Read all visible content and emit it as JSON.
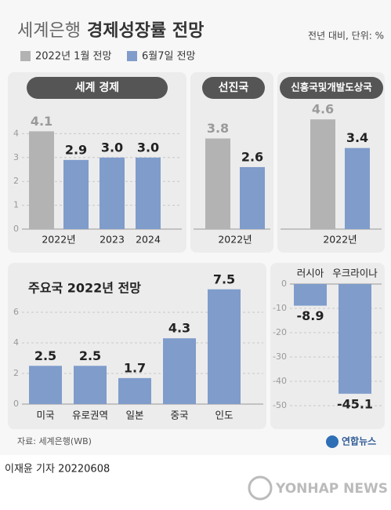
{
  "header": {
    "title_light": "세계은행",
    "title_bold": "경제성장률 전망",
    "unit": "전년 대비, 단위: %"
  },
  "chart_data": [
    {
      "type": "bar",
      "title": "세계 경제",
      "categories": [
        "2022년",
        "2023",
        "2024"
      ],
      "series": [
        {
          "name": "2022년 1월 전망",
          "color": "#b3b3b3",
          "values": [
            4.1,
            null,
            null
          ]
        },
        {
          "name": "6월7일 전망",
          "color": "#7f9ccb",
          "values": [
            2.9,
            3.0,
            3.0
          ],
          "value_labels": [
            "2.9",
            "3.0",
            "3.0"
          ]
        }
      ],
      "ylim": [
        0,
        5
      ],
      "yticks": [
        0,
        1,
        2,
        3,
        4
      ],
      "grid": true
    },
    {
      "type": "bar",
      "title": "선진국",
      "categories": [
        "2022년"
      ],
      "series": [
        {
          "color": "#b3b3b3",
          "values": [
            3.8
          ]
        },
        {
          "color": "#7f9ccb",
          "values": [
            2.6
          ]
        }
      ],
      "ylim": [
        0,
        5
      ]
    },
    {
      "type": "bar",
      "title": "신흥국및개발도상국",
      "categories": [
        "2022년"
      ],
      "series": [
        {
          "color": "#b3b3b3",
          "values": [
            4.6
          ]
        },
        {
          "color": "#7f9ccb",
          "values": [
            3.4
          ]
        }
      ],
      "ylim": [
        0,
        5
      ]
    },
    {
      "type": "bar",
      "title": "주요국 2022년 전망",
      "categories": [
        "미국",
        "유로권역",
        "일본",
        "중국",
        "인도"
      ],
      "series": [
        {
          "color": "#7f9ccb",
          "values": [
            2.5,
            2.5,
            1.7,
            4.3,
            7.5
          ]
        }
      ],
      "ylim": [
        0,
        8
      ],
      "yticks": [
        0,
        2,
        4,
        6
      ],
      "grid": true
    },
    {
      "type": "bar",
      "categories": [
        "러시아",
        "우크라이나"
      ],
      "series": [
        {
          "color": "#7f9ccb",
          "values": [
            -8.9,
            -45.1
          ]
        }
      ],
      "ylim": [
        -52,
        0
      ],
      "yticks": [
        0,
        -10,
        -20,
        -30,
        -40,
        -50
      ],
      "grid": true
    }
  ],
  "footer": {
    "source": "자료: 세계은행(WB)",
    "logo": "연합뉴스",
    "byline": "이재윤 기자  20220608",
    "watermark": "YONHAP NEWS"
  }
}
